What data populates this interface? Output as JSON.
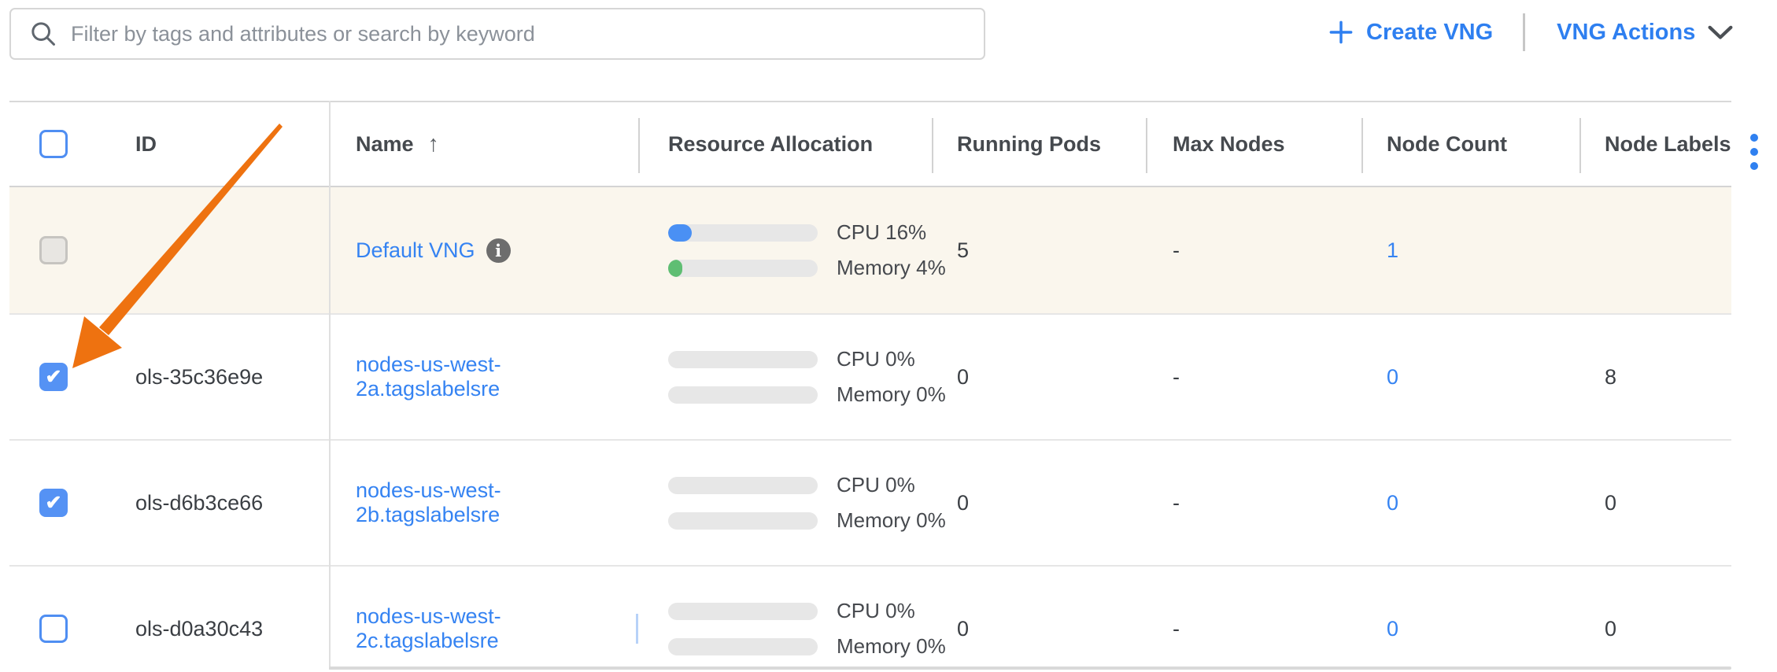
{
  "colors": {
    "link-blue": "#3583f2",
    "button-blue": "#2e7ff0",
    "checkbox-blue": "#5592f4",
    "cpu-fill": "#4a90f4",
    "memory-fill": "#5fbe73",
    "highlight-bg": "#faf6ed",
    "arrow-orange": "#ee7210",
    "kebab-blue": "#2f80f0",
    "caret-blue": "#b7d2f8"
  },
  "toolbar": {
    "search_placeholder": "Filter by tags and attributes or search by keyword",
    "create_vng": "Create VNG",
    "vng_actions": "VNG Actions"
  },
  "table": {
    "select_all_checkbox": "unchecked",
    "headers": {
      "id": "ID",
      "name": "Name",
      "resource_allocation": "Resource Allocation",
      "running_pods": "Running Pods",
      "max_nodes": "Max Nodes",
      "node_count": "Node Count",
      "node_labels": "Node Labels"
    },
    "sort": {
      "column": "Name",
      "direction": "ascending",
      "icon": "↑"
    },
    "rows": [
      {
        "checkbox": "disabled",
        "highlighted": true,
        "id": "",
        "name": "Default VNG",
        "info_icon": true,
        "caret": false,
        "cpu_pct": 16,
        "cpu_label": "CPU 16%",
        "memory_pct": 4,
        "memory_label": "Memory 4%",
        "running_pods": "5",
        "max_nodes": "-",
        "node_count": "1",
        "node_labels": ""
      },
      {
        "checkbox": "checked",
        "highlighted": false,
        "id": "ols-35c36e9e",
        "name": "nodes-us-west-2a.tagslabelsre",
        "info_icon": false,
        "caret": false,
        "cpu_pct": 0,
        "cpu_label": "CPU 0%",
        "memory_pct": 0,
        "memory_label": "Memory 0%",
        "running_pods": "0",
        "max_nodes": "-",
        "node_count": "0",
        "node_labels": "8"
      },
      {
        "checkbox": "checked",
        "highlighted": false,
        "id": "ols-d6b3ce66",
        "name": "nodes-us-west-2b.tagslabelsre",
        "info_icon": false,
        "caret": false,
        "cpu_pct": 0,
        "cpu_label": "CPU 0%",
        "memory_pct": 0,
        "memory_label": "Memory 0%",
        "running_pods": "0",
        "max_nodes": "-",
        "node_count": "0",
        "node_labels": "0"
      },
      {
        "checkbox": "unchecked",
        "highlighted": false,
        "id": "ols-d0a30c43",
        "name": "nodes-us-west-2c.tagslabelsre",
        "info_icon": false,
        "caret": true,
        "cpu_pct": 0,
        "cpu_label": "CPU 0%",
        "memory_pct": 0,
        "memory_label": "Memory 0%",
        "running_pods": "0",
        "max_nodes": "-",
        "node_count": "0",
        "node_labels": "0"
      }
    ]
  },
  "annotation": {
    "type": "arrow",
    "color": "#ee7210",
    "points_to": "checkbox of row ols-35c36e9e"
  }
}
